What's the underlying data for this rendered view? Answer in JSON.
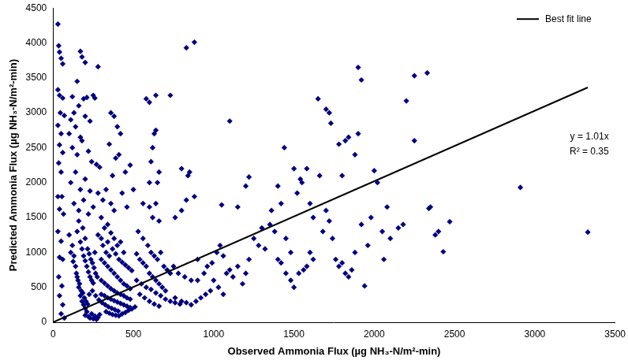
{
  "chart_data": {
    "type": "scatter",
    "x_label": "Observed Ammonia Flux (µg NH₃-N/m²-min)",
    "y_label": "Predicted Ammonia Flux (µg NH₃-N/m²-min)",
    "xlim": [
      0,
      3500
    ],
    "xticks": [
      0,
      500,
      1000,
      1500,
      2000,
      2500,
      3000,
      3500
    ],
    "ylim": [
      0,
      4500
    ],
    "yticks": [
      0,
      500,
      1000,
      1500,
      2000,
      2500,
      3000,
      3500,
      4000,
      4500
    ],
    "grid": false,
    "legend": "top-right",
    "annotations": [
      "y = 1.01x",
      "R² = 0.35"
    ],
    "series": [
      {
        "type": "scatter",
        "color": "#000080",
        "marker": "diamond",
        "x": [
          30,
          35,
          40,
          50,
          60,
          30,
          40,
          60,
          45,
          70,
          30,
          50,
          40,
          60,
          35,
          50,
          30,
          55,
          40,
          65,
          30,
          50,
          40,
          60,
          35,
          55,
          40,
          60,
          50,
          70,
          120,
          150,
          170,
          180,
          200,
          110,
          130,
          160,
          190,
          210,
          100,
          140,
          170,
          200,
          230,
          250,
          260,
          280,
          120,
          150,
          180,
          220,
          240,
          270,
          290,
          110,
          140,
          170,
          200,
          230,
          130,
          160,
          190,
          220,
          250,
          280,
          300,
          310,
          340,
          360,
          360,
          380,
          400,
          420,
          350,
          390,
          410,
          450,
          480,
          500,
          370,
          430,
          460,
          330,
          380,
          100,
          120,
          130,
          140,
          150,
          160,
          170,
          180,
          190,
          200,
          110,
          125,
          145,
          155,
          165,
          175,
          185,
          195,
          205,
          215,
          150,
          170,
          180,
          190,
          200,
          210,
          220,
          230,
          240,
          250,
          160,
          185,
          200,
          215,
          225,
          235,
          245,
          255,
          265,
          275,
          200,
          210,
          220,
          230,
          240,
          250,
          260,
          270,
          280,
          290,
          225,
          245,
          265,
          285,
          305,
          325,
          345,
          365,
          385,
          405,
          300,
          320,
          340,
          360,
          380,
          400,
          420,
          440,
          460,
          480,
          310,
          330,
          350,
          370,
          390,
          410,
          430,
          450,
          470,
          490,
          300,
          320,
          340,
          360,
          380,
          400,
          420,
          440,
          460,
          480,
          300,
          320,
          340,
          360,
          380,
          400,
          420,
          440,
          460,
          480,
          330,
          350,
          370,
          390,
          410,
          430,
          450,
          470,
          490,
          510,
          260,
          280,
          300,
          320,
          340,
          360,
          380,
          400,
          420,
          440,
          520,
          540,
          560,
          580,
          600,
          620,
          640,
          660,
          680,
          700,
          530,
          560,
          590,
          610,
          630,
          650,
          670,
          690,
          710,
          730,
          560,
          600,
          620,
          640,
          660,
          600,
          610,
          620,
          630,
          640,
          580,
          600,
          640,
          650,
          660,
          540,
          570,
          600,
          630,
          660,
          520,
          550,
          580,
          610,
          640,
          670,
          700,
          730,
          760,
          790,
          730,
          760,
          800,
          830,
          840,
          850,
          830,
          880,
          880,
          800,
          760,
          800,
          830,
          860,
          890,
          920,
          950,
          980,
          900,
          940,
          750,
          780,
          820,
          860,
          900,
          960,
          990,
          1020,
          1040,
          1060,
          1000,
          1030,
          1060,
          1080,
          1100,
          1120,
          1150,
          1180,
          1200,
          1220,
          1050,
          1100,
          1150,
          1200,
          1220,
          1250,
          1280,
          1300,
          1320,
          1350,
          1360,
          1380,
          1400,
          1420,
          1440,
          1450,
          1480,
          1500,
          1520,
          1540,
          1400,
          1420,
          1450,
          1480,
          1500,
          1530,
          1560,
          1580,
          1600,
          1620,
          1550,
          1580,
          1600,
          1620,
          1650,
          1660,
          1680,
          1700,
          1720,
          1730,
          1700,
          1720,
          1740,
          1760,
          1780,
          1800,
          1820,
          1840,
          1860,
          1880,
          1780,
          1800,
          1820,
          1840,
          1880,
          1900,
          1920,
          1900,
          1920,
          1940,
          1960,
          1980,
          2000,
          2020,
          2050,
          2080,
          2100,
          2150,
          2180,
          2060,
          2200,
          2250,
          2330,
          2250,
          2340,
          2350,
          2380,
          2400,
          2430,
          2470,
          2910,
          3330
        ],
        "values": [
          4270,
          3960,
          3870,
          3780,
          3700,
          3330,
          3250,
          3210,
          3000,
          2960,
          2820,
          2700,
          2540,
          2430,
          2280,
          2150,
          1800,
          1800,
          1620,
          1550,
          1300,
          1160,
          930,
          900,
          650,
          520,
          380,
          250,
          120,
          60,
          3230,
          3450,
          3880,
          3800,
          3720,
          2900,
          3000,
          3100,
          3200,
          3220,
          2700,
          2800,
          2650,
          2950,
          2880,
          3250,
          3210,
          3660,
          2500,
          2400,
          2600,
          2450,
          2300,
          2260,
          2220,
          2000,
          2150,
          1900,
          2050,
          1880,
          1700,
          1600,
          1750,
          1550,
          1650,
          1850,
          1500,
          1750,
          1400,
          1700,
          3000,
          2950,
          2800,
          2700,
          2550,
          2350,
          2400,
          2150,
          2250,
          1900,
          2100,
          1850,
          1650,
          1900,
          1600,
          1250,
          1100,
          950,
          800,
          650,
          500,
          380,
          300,
          250,
          200,
          1000,
          870,
          700,
          600,
          550,
          450,
          420,
          350,
          300,
          260,
          1300,
          1150,
          1050,
          950,
          880,
          800,
          720,
          650,
          600,
          560,
          1450,
          1350,
          1200,
          1050,
          980,
          900,
          850,
          780,
          700,
          650,
          100,
          150,
          80,
          60,
          120,
          50,
          90,
          40,
          70,
          110,
          400,
          450,
          380,
          320,
          280,
          250,
          220,
          200,
          180,
          160,
          900,
          850,
          800,
          750,
          700,
          650,
          600,
          550,
          520,
          480,
          1100,
          1000,
          950,
          1050,
          980,
          900,
          860,
          820,
          780,
          740,
          600,
          560,
          520,
          480,
          450,
          420,
          400,
          380,
          350,
          330,
          400,
          380,
          350,
          330,
          310,
          290,
          270,
          250,
          230,
          210,
          150,
          130,
          110,
          100,
          90,
          120,
          140,
          170,
          190,
          220,
          1000,
          1250,
          1200,
          1350,
          1150,
          1280,
          1200,
          1100,
          1150,
          1000,
          980,
          900,
          850,
          800,
          700,
          650,
          600,
          550,
          500,
          450,
          1300,
          1200,
          1100,
          1000,
          950,
          900,
          1000,
          800,
          750,
          700,
          1700,
          1650,
          1500,
          1700,
          1450,
          2000,
          2300,
          2500,
          2700,
          2750,
          3200,
          3150,
          3250,
          2000,
          2150,
          400,
          350,
          300,
          260,
          230,
          600,
          550,
          500,
          470,
          420,
          380,
          330,
          300,
          280,
          260,
          3250,
          1500,
          1600,
          1750,
          2100,
          2150,
          3930,
          4010,
          1800,
          2200,
          350,
          300,
          280,
          250,
          300,
          350,
          400,
          450,
          600,
          700,
          800,
          700,
          650,
          600,
          900,
          800,
          850,
          1000,
          1100,
          950,
          600,
          500,
          400,
          700,
          750,
          650,
          800,
          550,
          700,
          900,
          1680,
          2880,
          1650,
          1950,
          2080,
          1200,
          1100,
          1350,
          1050,
          1400,
          1600,
          1300,
          1950,
          1700,
          2500,
          1200,
          1000,
          2200,
          1850,
          2050,
          900,
          850,
          700,
          600,
          500,
          700,
          750,
          800,
          1000,
          900,
          2000,
          2200,
          1700,
          1500,
          3200,
          2100,
          1300,
          3050,
          3000,
          2850,
          1600,
          1450,
          1200,
          900,
          800,
          850,
          700,
          650,
          750,
          1000,
          2550,
          2100,
          2600,
          2650,
          2400,
          3650,
          3470,
          2700,
          1400,
          520,
          1100,
          1500,
          2170,
          2000,
          1300,
          1650,
          1200,
          1350,
          1400,
          900,
          3170,
          3530,
          3570,
          2600,
          1630,
          1650,
          1250,
          1300,
          1010,
          1440,
          1930,
          1290
        ]
      },
      {
        "name": "Best fit line",
        "type": "line",
        "color": "#000000",
        "line_style": "solid",
        "x": [
          0,
          3330
        ],
        "values": [
          0,
          3363
        ]
      }
    ]
  }
}
